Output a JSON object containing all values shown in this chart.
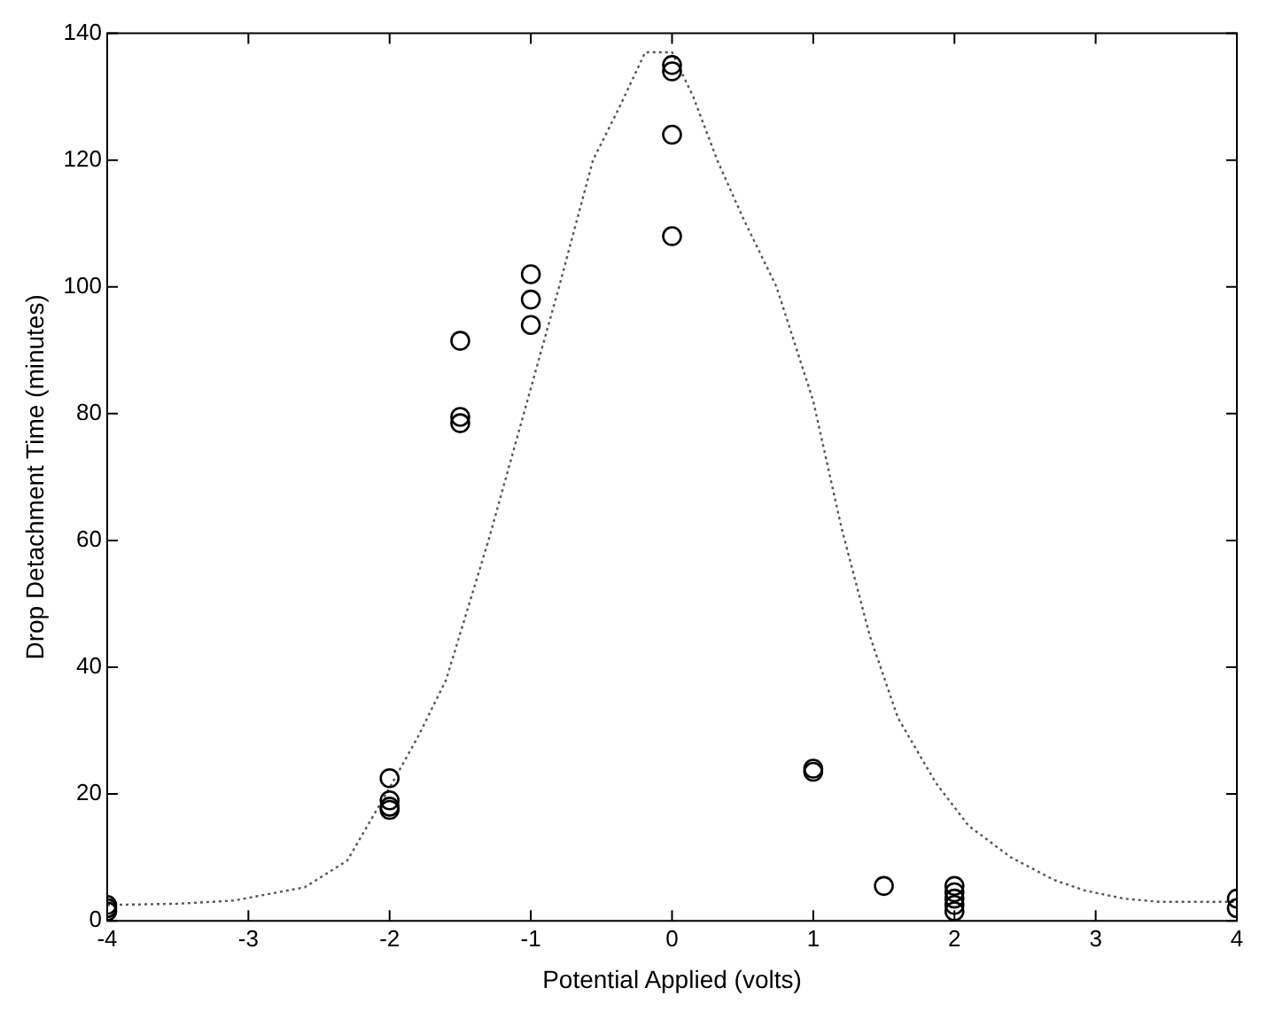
{
  "chart_data": {
    "type": "scatter",
    "xlabel": "Potential Applied (volts)",
    "ylabel": "Drop Detachment Time (minutes)",
    "xlim": [
      -4,
      4
    ],
    "ylim": [
      0,
      140
    ],
    "xticks": [
      -4,
      -3,
      -2,
      -1,
      0,
      1,
      2,
      3,
      4
    ],
    "yticks": [
      0,
      20,
      40,
      60,
      80,
      100,
      120,
      140
    ],
    "series": [
      {
        "type": "scatter",
        "color": "#000000",
        "marker": "circle",
        "x": [
          -4,
          -4,
          -4,
          -2,
          -2,
          -2,
          -2,
          -1.5,
          -1.5,
          -1.5,
          -1,
          -1,
          -1,
          0,
          0,
          0,
          0,
          1,
          1,
          1.5,
          2,
          2,
          2,
          2,
          2,
          4,
          4
        ],
        "values": [
          2.5,
          2,
          1.5,
          22.5,
          19,
          18,
          17.5,
          91.5,
          79.5,
          78.5,
          102,
          98,
          94,
          135,
          134,
          124,
          108,
          24,
          23.5,
          5.5,
          5.5,
          4.5,
          3.5,
          2.5,
          1.5,
          3.5,
          2
        ]
      },
      {
        "type": "line",
        "color": "#555555",
        "marker": "none",
        "line_style": "dotted",
        "x": [
          -4,
          -3.5,
          -3.1,
          -2.6,
          -2.3,
          -2,
          -1.8,
          -1.6,
          -1.3,
          -1.05,
          -0.8,
          -0.56,
          -0.38,
          -0.19,
          0,
          0.15,
          0.32,
          0.5,
          0.74,
          1,
          1.2,
          1.4,
          1.6,
          1.87,
          2.1,
          2.4,
          2.7,
          2.92,
          3.2,
          3.45,
          3.7,
          4
        ],
        "values": [
          2.5,
          2.7,
          3.2,
          5.3,
          9.5,
          21,
          29,
          38,
          60,
          80,
          100,
          120,
          128,
          137,
          137,
          130,
          120,
          111,
          100,
          82,
          62,
          45,
          32,
          21.7,
          15,
          10,
          6.5,
          4.8,
          3.5,
          3,
          3,
          3
        ]
      }
    ]
  }
}
